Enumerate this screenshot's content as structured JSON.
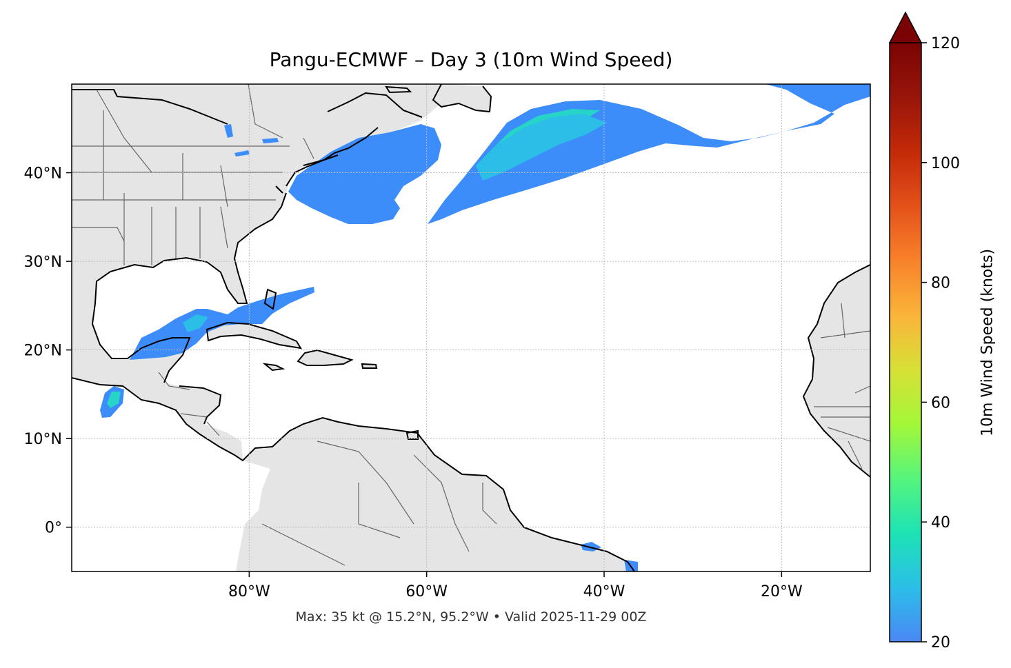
{
  "title": "Pangu-ECMWF – Day 3 (10m Wind Speed)",
  "footer": "Max: 35 kt @ 15.2°N, 95.2°W • Valid 2025-11-29 00Z",
  "map": {
    "projection": "PlateCarree",
    "lon_range": [
      -100,
      -10
    ],
    "lat_range": [
      -5,
      50
    ],
    "gridlines": true,
    "land_color": "#e5e5e5",
    "coast_color": "#000000",
    "border_color": "#666666",
    "lon_ticks": [
      {
        "value": -80,
        "label": "80°W"
      },
      {
        "value": -60,
        "label": "60°W"
      },
      {
        "value": -40,
        "label": "40°W"
      },
      {
        "value": -20,
        "label": "20°W"
      }
    ],
    "lat_ticks": [
      {
        "value": 40,
        "label": "40°N"
      },
      {
        "value": 30,
        "label": "30°N"
      },
      {
        "value": 20,
        "label": "20°N"
      },
      {
        "value": 10,
        "label": "10°N"
      },
      {
        "value": 0,
        "label": "0°"
      }
    ]
  },
  "colorbar": {
    "label": "10m Wind Speed (knots)",
    "min": 20,
    "max": 120,
    "extend": "max",
    "ticks": [
      {
        "value": 20,
        "label": "20"
      },
      {
        "value": 40,
        "label": "40"
      },
      {
        "value": 60,
        "label": "60"
      },
      {
        "value": 80,
        "label": "80"
      },
      {
        "value": 100,
        "label": "100"
      },
      {
        "value": 120,
        "label": "120"
      }
    ],
    "colormap": [
      "#4a87f5",
      "#2bbfe8",
      "#1de3b4",
      "#56f57c",
      "#a4f738",
      "#d7e035",
      "#fbb43a",
      "#f8822a",
      "#e4511a",
      "#c22a08",
      "#98150a",
      "#7a0403"
    ],
    "extend_color": "#7a0403"
  },
  "wind_speed_colors": {
    "weak": "#3c8cfa",
    "moderate": "#2bbfe8",
    "stronger": "#27d4c8"
  },
  "max_point": {
    "speed_kt": 35,
    "lat": 15.2,
    "lon": -95.2
  }
}
